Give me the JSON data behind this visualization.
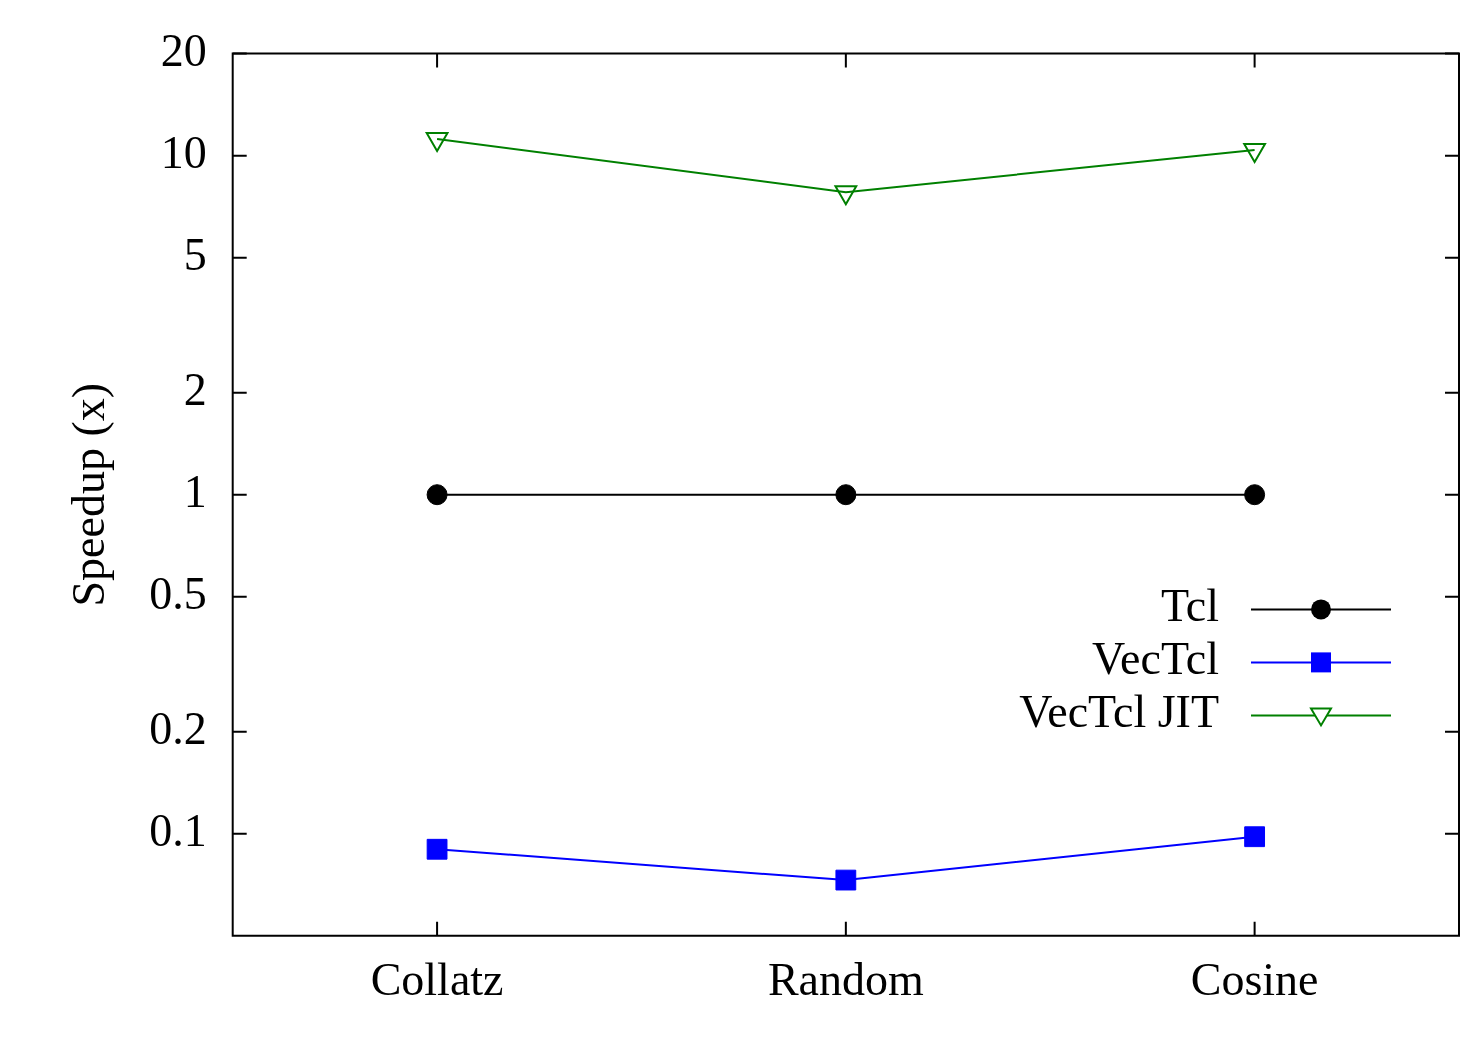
{
  "chart_data": {
    "type": "line",
    "ylabel": "Speedup (x)",
    "categories": [
      "Collatz",
      "Random",
      "Cosine"
    ],
    "series": [
      {
        "name": "Tcl",
        "color": "#000000",
        "marker": "circle",
        "values": [
          1,
          1,
          1
        ]
      },
      {
        "name": "VecTcl",
        "color": "#0000ff",
        "marker": "square",
        "values": [
          0.09,
          0.073,
          0.098
        ]
      },
      {
        "name": "VecTcl JIT",
        "color": "#008000",
        "marker": "triangle",
        "values": [
          11.2,
          7.8,
          10.4
        ]
      }
    ],
    "log": "y",
    "ylim": [
      0.05,
      20
    ],
    "yticks": [
      0.1,
      0.2,
      0.5,
      1,
      2,
      5,
      10,
      20
    ],
    "grid": false,
    "legend": "right"
  }
}
